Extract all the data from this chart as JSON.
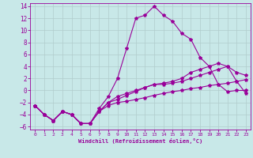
{
  "xlabel": "Windchill (Refroidissement éolien,°C)",
  "bg_color": "#c8e8e8",
  "line_color": "#990099",
  "grid_color": "#b0cccc",
  "xlim": [
    -0.5,
    23.5
  ],
  "ylim": [
    -6.5,
    14.5
  ],
  "xticks": [
    0,
    1,
    2,
    3,
    4,
    5,
    6,
    7,
    8,
    9,
    10,
    11,
    12,
    13,
    14,
    15,
    16,
    17,
    18,
    19,
    20,
    21,
    22,
    23
  ],
  "yticks": [
    -6,
    -4,
    -2,
    0,
    2,
    4,
    6,
    8,
    10,
    12,
    14
  ],
  "curve1_x": [
    0,
    1,
    2,
    3,
    4,
    5,
    6,
    7,
    8,
    9,
    10,
    11,
    12,
    13,
    14,
    15,
    16,
    17,
    18,
    19,
    20,
    21,
    22,
    23
  ],
  "curve1_y": [
    -2.5,
    -4.0,
    -5.0,
    -3.5,
    -4.0,
    -5.5,
    -5.5,
    -3.0,
    -1.0,
    2.0,
    7.0,
    12.0,
    12.5,
    14.0,
    12.5,
    11.5,
    9.5,
    8.5,
    5.5,
    4.0,
    1.0,
    -0.2,
    0.0,
    0.0
  ],
  "curve2_x": [
    0,
    1,
    2,
    3,
    4,
    5,
    6,
    7,
    8,
    9,
    10,
    11,
    12,
    13,
    14,
    15,
    16,
    17,
    18,
    19,
    20,
    21,
    22,
    23
  ],
  "curve2_y": [
    -2.5,
    -4.0,
    -5.0,
    -3.5,
    -4.0,
    -5.5,
    -5.5,
    -3.5,
    -2.5,
    -2.0,
    -1.8,
    -1.5,
    -1.2,
    -0.8,
    -0.5,
    -0.2,
    0.0,
    0.3,
    0.5,
    0.8,
    1.0,
    1.2,
    1.5,
    1.8
  ],
  "curve3_x": [
    0,
    1,
    2,
    3,
    4,
    5,
    6,
    7,
    8,
    9,
    10,
    11,
    12,
    13,
    14,
    15,
    16,
    17,
    18,
    19,
    20,
    21,
    22,
    23
  ],
  "curve3_y": [
    -2.5,
    -4.0,
    -5.0,
    -3.5,
    -4.0,
    -5.5,
    -5.5,
    -3.5,
    -2.0,
    -1.5,
    -0.8,
    -0.2,
    0.5,
    1.0,
    1.2,
    1.5,
    2.0,
    3.0,
    3.5,
    4.0,
    4.5,
    4.0,
    1.5,
    -0.5
  ],
  "curve4_x": [
    0,
    1,
    2,
    3,
    4,
    5,
    6,
    7,
    8,
    9,
    10,
    11,
    12,
    13,
    14,
    15,
    16,
    17,
    18,
    19,
    20,
    21,
    22,
    23
  ],
  "curve4_y": [
    -2.5,
    -4.0,
    -5.0,
    -3.5,
    -4.0,
    -5.5,
    -5.5,
    -3.5,
    -2.0,
    -1.0,
    -0.5,
    0.0,
    0.5,
    1.0,
    1.0,
    1.2,
    1.5,
    2.0,
    2.5,
    3.0,
    3.5,
    4.0,
    3.0,
    2.5
  ]
}
